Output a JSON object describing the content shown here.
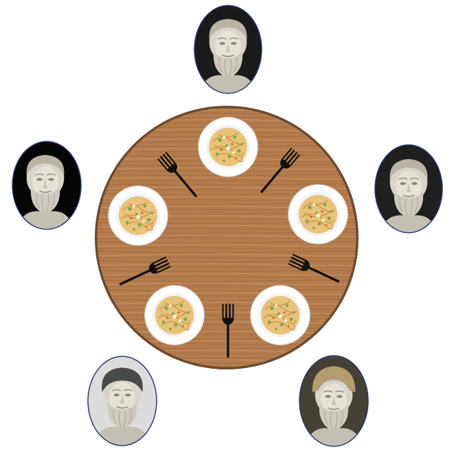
{
  "scene": {
    "table_color": "#b07a4c",
    "table_rim_color": "#6b4a2f",
    "plate_color": "#ffffff",
    "fork_color": "#111111"
  },
  "philosophers": [
    {
      "id": "top",
      "icon": "philosopher-bust-icon",
      "background": "#1a1a1a"
    },
    {
      "id": "left",
      "icon": "philosopher-bust-icon",
      "background": "#050505"
    },
    {
      "id": "right",
      "icon": "philosopher-bust-icon",
      "background": "#1f1f1f"
    },
    {
      "id": "bottom-left",
      "icon": "philosopher-bust-icon",
      "background": "#dcdcdc"
    },
    {
      "id": "bottom-right",
      "icon": "philosopher-bust-icon",
      "background": "#444036"
    }
  ],
  "plates": [
    {
      "id": "top",
      "icon": "spaghetti-plate-icon"
    },
    {
      "id": "left",
      "icon": "spaghetti-plate-icon"
    },
    {
      "id": "right",
      "icon": "spaghetti-plate-icon"
    },
    {
      "id": "bottom-left",
      "icon": "spaghetti-plate-icon"
    },
    {
      "id": "bottom-right",
      "icon": "spaghetti-plate-icon"
    }
  ],
  "forks": [
    {
      "id": "upper-left",
      "icon": "fork-icon"
    },
    {
      "id": "upper-right",
      "icon": "fork-icon"
    },
    {
      "id": "lower-left",
      "icon": "fork-icon"
    },
    {
      "id": "lower-right",
      "icon": "fork-icon"
    },
    {
      "id": "bottom",
      "icon": "fork-icon"
    }
  ]
}
